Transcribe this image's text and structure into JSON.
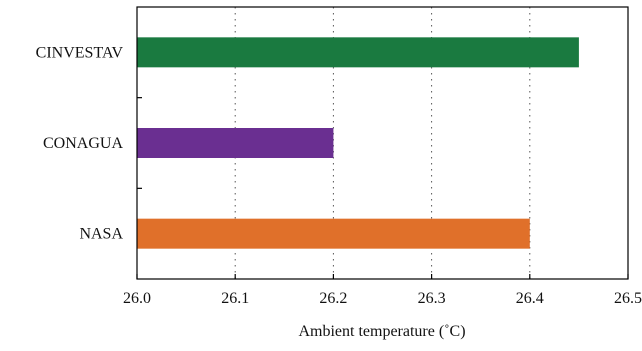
{
  "chart_data": {
    "type": "bar",
    "orientation": "horizontal",
    "categories": [
      "CINVESTAV",
      "CONAGUA",
      "NASA"
    ],
    "values": [
      26.45,
      26.2,
      26.4
    ],
    "colors": [
      "#1a7a40",
      "#6a2f91",
      "#e0702a"
    ],
    "xlabel": "Ambient temperature (˚C)",
    "xlim": [
      26.0,
      26.5
    ],
    "xticks": [
      "26.0",
      "26.1",
      "26.2",
      "26.3",
      "26.4",
      "26.5"
    ],
    "grid": "x-dotted",
    "legend": "none"
  }
}
